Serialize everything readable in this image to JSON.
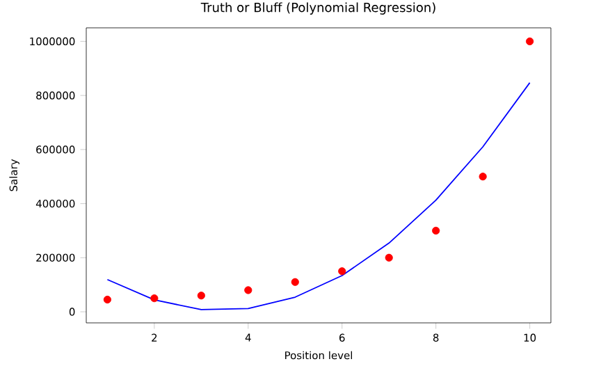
{
  "chart_data": {
    "type": "scatter",
    "title": "Truth or Bluff (Polynomial Regression)",
    "xlabel": "Position level",
    "ylabel": "Salary",
    "xlim": [
      0.55,
      10.45
    ],
    "ylim": [
      -41000,
      1050000
    ],
    "xticks": [
      2,
      4,
      6,
      8,
      10
    ],
    "yticks": [
      0,
      200000,
      400000,
      600000,
      800000,
      1000000
    ],
    "grid": false,
    "series": [
      {
        "color": "#ff0000",
        "marker": "circle",
        "x": [
          1,
          2,
          3,
          4,
          5,
          6,
          7,
          8,
          9,
          10
        ],
        "values": [
          45000,
          50000,
          60000,
          80000,
          110000,
          150000,
          200000,
          300000,
          500000,
          1000000
        ]
      },
      {
        "type": "line",
        "marker": "none",
        "color": "#0000ff",
        "x": [
          1,
          2,
          3,
          4,
          5,
          6,
          7,
          8,
          9,
          10
        ],
        "values": [
          119000,
          44000,
          8000,
          12000,
          54000,
          134000,
          254000,
          413000,
          610000,
          847000
        ]
      }
    ]
  }
}
